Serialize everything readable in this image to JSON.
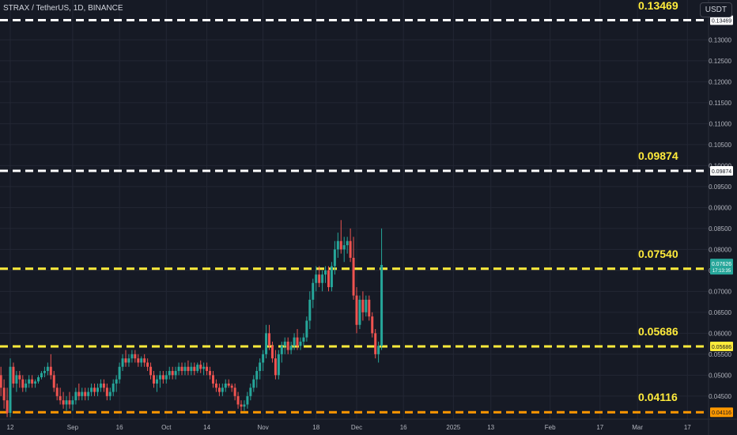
{
  "header": {
    "symbol": "STRAX / TetherUS, 1D, BINANCE",
    "currency_button": "USDT"
  },
  "colors": {
    "background": "#161a25",
    "grid": "#232734",
    "up": "#26a69a",
    "down": "#ef5350",
    "axis_text": "#b2b5be",
    "level_white": "#ffffff",
    "level_yellow": "#ffeb3b",
    "level_orange": "#ff9800",
    "label_text": "#ffeb3b"
  },
  "chart_data": {
    "type": "candlestick",
    "y_axis": {
      "side": "right",
      "range": [
        0.0395,
        0.1395
      ],
      "ticks": [
        "0.13000",
        "0.12500",
        "0.12000",
        "0.11500",
        "0.11000",
        "0.10500",
        "0.10000",
        "0.09500",
        "0.09000",
        "0.08500",
        "0.08000",
        "0.07500",
        "0.07000",
        "0.06500",
        "0.06000",
        "0.05500",
        "0.05000",
        "0.04500"
      ]
    },
    "x_axis": {
      "ticks": [
        {
          "label": "12",
          "day": 0
        },
        {
          "label": "Sep",
          "day": 20
        },
        {
          "label": "16",
          "day": 35
        },
        {
          "label": "Oct",
          "day": 50
        },
        {
          "label": "14",
          "day": 63
        },
        {
          "label": "Nov",
          "day": 81
        },
        {
          "label": "18",
          "day": 98
        },
        {
          "label": "Dec",
          "day": 111
        },
        {
          "label": "16",
          "day": 126
        },
        {
          "label": "2025",
          "day": 142
        },
        {
          "label": "13",
          "day": 154
        },
        {
          "label": "Feb",
          "day": 173
        },
        {
          "label": "17",
          "day": 189
        },
        {
          "label": "Mar",
          "day": 201
        },
        {
          "label": "17",
          "day": 217
        }
      ]
    },
    "levels": [
      {
        "value": 0.13469,
        "label": "0.13469",
        "color": "white",
        "price_tag": "0.13469"
      },
      {
        "value": 0.09874,
        "label": "0.09874",
        "color": "white",
        "price_tag": "0.09874"
      },
      {
        "value": 0.0754,
        "label": "0.07540",
        "color": "yellow",
        "price_tag": "0.07540"
      },
      {
        "value": 0.05686,
        "label": "0.05686",
        "color": "yellow",
        "price_tag": "0.05686"
      },
      {
        "value": 0.04116,
        "label": "0.04116",
        "color": "orange",
        "price_tag": "0.04116"
      }
    ],
    "current_price": {
      "value": 0.07626,
      "label": "0.07626",
      "countdown": "17:13:35"
    },
    "candles_start_day": -3,
    "candles": [
      [
        0.05,
        0.052,
        0.045,
        0.047
      ],
      [
        0.047,
        0.049,
        0.042,
        0.044
      ],
      [
        0.044,
        0.047,
        0.04,
        0.041
      ],
      [
        0.041,
        0.054,
        0.04,
        0.052
      ],
      [
        0.052,
        0.053,
        0.047,
        0.048
      ],
      [
        0.048,
        0.051,
        0.046,
        0.05
      ],
      [
        0.05,
        0.051,
        0.047,
        0.049
      ],
      [
        0.049,
        0.05,
        0.046,
        0.047
      ],
      [
        0.047,
        0.049,
        0.046,
        0.048
      ],
      [
        0.048,
        0.05,
        0.047,
        0.049
      ],
      [
        0.049,
        0.05,
        0.047,
        0.048
      ],
      [
        0.048,
        0.049,
        0.047,
        0.0485
      ],
      [
        0.0485,
        0.05,
        0.048,
        0.0495
      ],
      [
        0.0495,
        0.051,
        0.049,
        0.0505
      ],
      [
        0.0505,
        0.052,
        0.0495,
        0.051
      ],
      [
        0.051,
        0.053,
        0.05,
        0.052
      ],
      [
        0.052,
        0.055,
        0.049,
        0.05
      ],
      [
        0.05,
        0.051,
        0.046,
        0.047
      ],
      [
        0.047,
        0.048,
        0.044,
        0.045
      ],
      [
        0.045,
        0.047,
        0.043,
        0.044
      ],
      [
        0.044,
        0.046,
        0.042,
        0.043
      ],
      [
        0.043,
        0.045,
        0.0415,
        0.044
      ],
      [
        0.044,
        0.046,
        0.042,
        0.043
      ],
      [
        0.043,
        0.045,
        0.0415,
        0.044
      ],
      [
        0.044,
        0.047,
        0.043,
        0.046
      ],
      [
        0.046,
        0.048,
        0.044,
        0.045
      ],
      [
        0.045,
        0.047,
        0.044,
        0.046
      ],
      [
        0.046,
        0.047,
        0.044,
        0.045
      ],
      [
        0.045,
        0.047,
        0.044,
        0.046
      ],
      [
        0.046,
        0.048,
        0.045,
        0.047
      ],
      [
        0.047,
        0.048,
        0.045,
        0.046
      ],
      [
        0.046,
        0.048,
        0.045,
        0.047
      ],
      [
        0.047,
        0.049,
        0.046,
        0.048
      ],
      [
        0.048,
        0.049,
        0.046,
        0.047
      ],
      [
        0.047,
        0.048,
        0.044,
        0.045
      ],
      [
        0.045,
        0.047,
        0.044,
        0.046
      ],
      [
        0.046,
        0.049,
        0.045,
        0.048
      ],
      [
        0.048,
        0.05,
        0.046,
        0.049
      ],
      [
        0.049,
        0.053,
        0.048,
        0.052
      ],
      [
        0.052,
        0.055,
        0.051,
        0.054
      ],
      [
        0.054,
        0.056,
        0.052,
        0.053
      ],
      [
        0.053,
        0.055,
        0.052,
        0.054
      ],
      [
        0.054,
        0.056,
        0.053,
        0.055
      ],
      [
        0.055,
        0.056,
        0.053,
        0.054
      ],
      [
        0.054,
        0.055,
        0.052,
        0.053
      ],
      [
        0.053,
        0.0545,
        0.052,
        0.054
      ],
      [
        0.054,
        0.055,
        0.052,
        0.053
      ],
      [
        0.053,
        0.054,
        0.051,
        0.052
      ],
      [
        0.052,
        0.053,
        0.049,
        0.05
      ],
      [
        0.05,
        0.051,
        0.047,
        0.048
      ],
      [
        0.048,
        0.05,
        0.046,
        0.049
      ],
      [
        0.049,
        0.051,
        0.047,
        0.05
      ],
      [
        0.05,
        0.051,
        0.048,
        0.049
      ],
      [
        0.049,
        0.051,
        0.048,
        0.05
      ],
      [
        0.05,
        0.052,
        0.049,
        0.051
      ],
      [
        0.051,
        0.052,
        0.049,
        0.05
      ],
      [
        0.05,
        0.052,
        0.049,
        0.051
      ],
      [
        0.051,
        0.053,
        0.05,
        0.052
      ],
      [
        0.052,
        0.053,
        0.05,
        0.051
      ],
      [
        0.051,
        0.053,
        0.05,
        0.052
      ],
      [
        0.052,
        0.0535,
        0.05,
        0.051
      ],
      [
        0.051,
        0.053,
        0.05,
        0.052
      ],
      [
        0.052,
        0.053,
        0.05,
        0.051
      ],
      [
        0.051,
        0.053,
        0.0505,
        0.0525
      ],
      [
        0.0525,
        0.0535,
        0.0505,
        0.0515
      ],
      [
        0.0515,
        0.053,
        0.05,
        0.052
      ],
      [
        0.052,
        0.053,
        0.05,
        0.051
      ],
      [
        0.051,
        0.052,
        0.049,
        0.05
      ],
      [
        0.05,
        0.051,
        0.047,
        0.048
      ],
      [
        0.048,
        0.049,
        0.046,
        0.047
      ],
      [
        0.047,
        0.048,
        0.045,
        0.046
      ],
      [
        0.046,
        0.048,
        0.045,
        0.047
      ],
      [
        0.047,
        0.049,
        0.046,
        0.048
      ],
      [
        0.048,
        0.049,
        0.047,
        0.0475
      ],
      [
        0.0475,
        0.048,
        0.046,
        0.047
      ],
      [
        0.047,
        0.048,
        0.044,
        0.045
      ],
      [
        0.045,
        0.046,
        0.042,
        0.043
      ],
      [
        0.043,
        0.044,
        0.0415,
        0.0425
      ],
      [
        0.0425,
        0.044,
        0.0415,
        0.043
      ],
      [
        0.043,
        0.046,
        0.042,
        0.045
      ],
      [
        0.045,
        0.048,
        0.044,
        0.047
      ],
      [
        0.047,
        0.05,
        0.046,
        0.049
      ],
      [
        0.049,
        0.052,
        0.047,
        0.051
      ],
      [
        0.051,
        0.054,
        0.049,
        0.053
      ],
      [
        0.053,
        0.056,
        0.051,
        0.055
      ],
      [
        0.055,
        0.062,
        0.054,
        0.06
      ],
      [
        0.06,
        0.062,
        0.056,
        0.057
      ],
      [
        0.057,
        0.058,
        0.053,
        0.054
      ],
      [
        0.054,
        0.056,
        0.049,
        0.05
      ],
      [
        0.05,
        0.056,
        0.049,
        0.055
      ],
      [
        0.055,
        0.058,
        0.053,
        0.057
      ],
      [
        0.057,
        0.059,
        0.055,
        0.058
      ],
      [
        0.058,
        0.059,
        0.055,
        0.056
      ],
      [
        0.056,
        0.058,
        0.055,
        0.057
      ],
      [
        0.057,
        0.06,
        0.056,
        0.059
      ],
      [
        0.059,
        0.061,
        0.056,
        0.057
      ],
      [
        0.057,
        0.059,
        0.056,
        0.058
      ],
      [
        0.058,
        0.06,
        0.057,
        0.059
      ],
      [
        0.059,
        0.064,
        0.058,
        0.063
      ],
      [
        0.063,
        0.07,
        0.061,
        0.068
      ],
      [
        0.068,
        0.073,
        0.066,
        0.072
      ],
      [
        0.072,
        0.076,
        0.07,
        0.074
      ],
      [
        0.074,
        0.076,
        0.071,
        0.072
      ],
      [
        0.072,
        0.075,
        0.07,
        0.074
      ],
      [
        0.074,
        0.076,
        0.072,
        0.075
      ],
      [
        0.075,
        0.076,
        0.07,
        0.071
      ],
      [
        0.071,
        0.077,
        0.07,
        0.076
      ],
      [
        0.076,
        0.082,
        0.074,
        0.08
      ],
      [
        0.08,
        0.084,
        0.078,
        0.082
      ],
      [
        0.082,
        0.087,
        0.079,
        0.08
      ],
      [
        0.08,
        0.083,
        0.077,
        0.081
      ],
      [
        0.081,
        0.083,
        0.079,
        0.082
      ],
      [
        0.082,
        0.085,
        0.077,
        0.078
      ],
      [
        0.078,
        0.083,
        0.068,
        0.069
      ],
      [
        0.069,
        0.071,
        0.06,
        0.062
      ],
      [
        0.062,
        0.069,
        0.061,
        0.068
      ],
      [
        0.068,
        0.07,
        0.063,
        0.065
      ],
      [
        0.065,
        0.069,
        0.064,
        0.068
      ],
      [
        0.068,
        0.069,
        0.063,
        0.064
      ],
      [
        0.064,
        0.065,
        0.059,
        0.06
      ],
      [
        0.06,
        0.061,
        0.054,
        0.055
      ],
      [
        0.055,
        0.058,
        0.053,
        0.057
      ],
      [
        0.057,
        0.085,
        0.056,
        0.0763
      ]
    ]
  }
}
